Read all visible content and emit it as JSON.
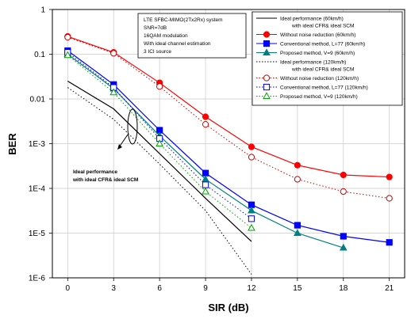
{
  "chart_data": {
    "type": "line",
    "xlabel": "SIR (dB)",
    "ylabel": "BER",
    "x_ticks": [
      "0",
      "3",
      "6",
      "9",
      "12",
      "15",
      "18",
      "21"
    ],
    "y_ticks": [
      "1",
      "0.1",
      "0.01",
      "1E-3",
      "1E-4",
      "1E-5",
      "1E-6"
    ],
    "xlim": [
      -1,
      22
    ],
    "ylim": [
      1e-06,
      1
    ],
    "y_scale": "log",
    "grid": true,
    "legend_position": "top-right",
    "info_box": [
      "LTE SFBC-MIMO(2Tx2Rx) system",
      "SNR=7dB",
      "16QAM modulation",
      "With ideal channel estimation",
      "3 ICI source"
    ],
    "annotation": [
      "Ideal performance",
      "with ideal CFR& ideal SCM"
    ],
    "series": [
      {
        "name": "Ideal performance (60km/h)",
        "name2": "with ideal CFR& ideal SCM",
        "color": "#000000",
        "dash": "solid",
        "marker": "none",
        "x": [
          0,
          3,
          6,
          9,
          12
        ],
        "y": [
          0.025,
          0.006,
          0.0006,
          6e-05,
          6.5e-06
        ]
      },
      {
        "name": "Without noise reduction (60km/h)",
        "color": "#ff0000",
        "dash": "solid",
        "marker": "circle",
        "x": [
          0,
          3,
          6,
          9,
          12,
          15,
          18,
          21
        ],
        "y": [
          0.25,
          0.11,
          0.023,
          0.004,
          0.00085,
          0.00033,
          0.0002,
          0.00018
        ]
      },
      {
        "name": "Conventional method, L=77 (60km/h)",
        "color": "#0000ff",
        "dash": "solid",
        "marker": "square",
        "x": [
          0,
          3,
          6,
          9,
          12,
          15,
          18,
          21
        ],
        "y": [
          0.12,
          0.021,
          0.002,
          0.00022,
          4.3e-05,
          1.5e-05,
          8.5e-06,
          6.2e-06
        ]
      },
      {
        "name": "Proposed method, V=9 (60km/h)",
        "color": "#008080",
        "dash": "solid",
        "marker": "triangle",
        "x": [
          0,
          3,
          6,
          9,
          12,
          15,
          18
        ],
        "y": [
          0.1,
          0.017,
          0.0015,
          0.00016,
          3.2e-05,
          1e-05,
          4.7e-06
        ]
      },
      {
        "name": "Ideal performance (120km/h)",
        "name2": "with ideal CFR& ideal SCM",
        "color": "#000000",
        "dash": "dotted",
        "marker": "none",
        "x": [
          0,
          3,
          6,
          9,
          12
        ],
        "y": [
          0.018,
          0.0035,
          0.00035,
          3.2e-05,
          1.2e-06
        ]
      },
      {
        "name": "Without noise reduction (120km/h)",
        "color": "#cc0000",
        "dash": "dotted",
        "marker": "circle-open",
        "x": [
          0,
          3,
          6,
          9,
          12,
          15,
          18,
          21
        ],
        "y": [
          0.24,
          0.105,
          0.019,
          0.0027,
          0.0005,
          0.00016,
          8.5e-05,
          6e-05
        ]
      },
      {
        "name": "Conventional method, L=77 (120km/h)",
        "color": "#0000ff",
        "dash": "dotted",
        "marker": "square-open",
        "x": [
          0,
          3,
          6,
          9,
          12
        ],
        "y": [
          0.11,
          0.018,
          0.0013,
          0.00012,
          2.1e-05
        ]
      },
      {
        "name": "Proposed method, V=9 (120km/h)",
        "color": "#00a000",
        "dash": "dotted",
        "marker": "triangle-open",
        "x": [
          0,
          3,
          6,
          9,
          12
        ],
        "y": [
          0.095,
          0.014,
          0.001,
          8.5e-05,
          1.3e-05
        ]
      }
    ]
  }
}
